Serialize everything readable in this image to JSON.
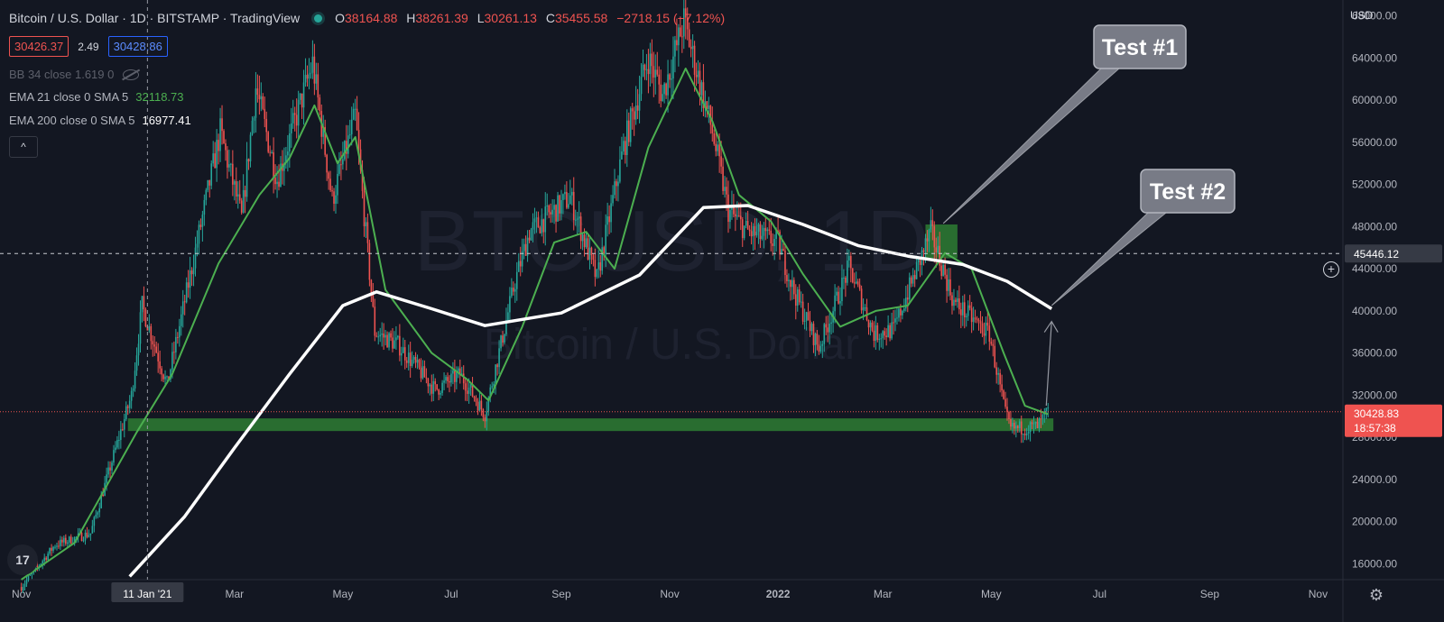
{
  "header": {
    "symbol_title": "Bitcoin / U.S. Dollar · 1D · BITSTAMP · TradingView",
    "ohlc": {
      "o_label": "O",
      "o": "38164.88",
      "h_label": "H",
      "h": "38261.39",
      "l_label": "L",
      "l": "30261.13",
      "c_label": "C",
      "c": "35455.58",
      "change": "−2718.15 (−7.12%)"
    },
    "sell_price": "30426.37",
    "spread": "2.49",
    "buy_price": "30428.86"
  },
  "indicators": {
    "bb": "BB 34 close 1.619 0",
    "ema21_label": "EMA 21 close 0 SMA 5",
    "ema21_value": "32118.73",
    "ema200_label": "EMA 200 close 0 SMA 5",
    "ema200_value": "16977.41"
  },
  "axis": {
    "currency": "USD",
    "crosshair_price": "45446.12",
    "last_price": "30428.83",
    "countdown": "18:57:38",
    "crosshair_date": "11 Jan '21"
  },
  "watermark": {
    "symbol": "BTCUSD, 1D",
    "name": "Bitcoin / U.S. Dollar"
  },
  "logo_text": "17",
  "icons": {
    "collapse": "chevron-up-icon",
    "hide": "eye-off-icon",
    "settings": "gear-icon",
    "add": "plus-circle-icon"
  },
  "colors": {
    "background": "#131722",
    "up": "#26a69a",
    "down": "#ef5350",
    "ema21": "#4caf50",
    "ema200": "#ffffff",
    "support_zone": "#2e7d32",
    "callout": "#787b86"
  },
  "chart_data": {
    "type": "candlestick",
    "title": "Bitcoin / U.S. Dollar",
    "interval": "1D",
    "exchange": "BITSTAMP",
    "y_range": [
      14500,
      69500
    ],
    "x_range": [
      "2020-10-20",
      "2022-11-15"
    ],
    "ylabel": "USD",
    "y_ticks": [
      16000,
      20000,
      24000,
      28000,
      32000,
      36000,
      40000,
      44000,
      48000,
      52000,
      56000,
      60000,
      64000,
      68000
    ],
    "y_tick_labels": [
      "16000.00",
      "20000.00",
      "24000.00",
      "28000.00",
      "32000.00",
      "36000.00",
      "40000.00",
      "44000.00",
      "48000.00",
      "52000.00",
      "56000.00",
      "60000.00",
      "64000.00",
      "68000.00"
    ],
    "x_ticks": [
      {
        "date": "2020-11-01",
        "label": "Nov"
      },
      {
        "date": "2021-01-11",
        "label": "11 Jan '21"
      },
      {
        "date": "2021-03-01",
        "label": "Mar"
      },
      {
        "date": "2021-05-01",
        "label": "May"
      },
      {
        "date": "2021-07-01",
        "label": "Jul"
      },
      {
        "date": "2021-09-01",
        "label": "Sep"
      },
      {
        "date": "2021-11-01",
        "label": "Nov"
      },
      {
        "date": "2022-01-01",
        "label": "2022"
      },
      {
        "date": "2022-03-01",
        "label": "Mar"
      },
      {
        "date": "2022-05-01",
        "label": "May"
      },
      {
        "date": "2022-07-01",
        "label": "Jul"
      },
      {
        "date": "2022-09-01",
        "label": "Sep"
      },
      {
        "date": "2022-11-01",
        "label": "Nov"
      }
    ],
    "series": [
      {
        "name": "BTCUSD",
        "x": [
          "2020-11-01",
          "2020-11-20",
          "2020-12-10",
          "2021-01-02",
          "2021-01-08",
          "2021-01-22",
          "2021-02-08",
          "2021-02-21",
          "2021-03-05",
          "2021-03-13",
          "2021-03-25",
          "2021-04-14",
          "2021-04-25",
          "2021-05-08",
          "2021-05-19",
          "2021-06-01",
          "2021-06-22",
          "2021-07-06",
          "2021-07-20",
          "2021-08-06",
          "2021-08-14",
          "2021-09-06",
          "2021-09-21",
          "2021-10-06",
          "2021-10-20",
          "2021-10-28",
          "2021-11-09",
          "2021-11-25",
          "2021-12-04",
          "2021-12-15",
          "2022-01-01",
          "2022-01-10",
          "2022-01-24",
          "2022-02-10",
          "2022-02-24",
          "2022-03-07",
          "2022-03-28",
          "2022-04-10",
          "2022-04-30",
          "2022-05-09",
          "2022-05-12",
          "2022-05-27",
          "2022-06-02"
        ],
        "close": [
          13800,
          17800,
          18900,
          32000,
          40500,
          33000,
          46500,
          57000,
          48800,
          61200,
          52500,
          63500,
          50500,
          58500,
          38000,
          36800,
          32500,
          34000,
          30200,
          42800,
          47500,
          50800,
          43000,
          55500,
          64000,
          60500,
          67500,
          57000,
          49500,
          47500,
          46500,
          41800,
          36500,
          44200,
          37800,
          38200,
          47500,
          40800,
          37800,
          30200,
          28800,
          29000,
          30428
        ]
      },
      {
        "name": "EMA 21",
        "x": [
          "2020-11-01",
          "2020-12-01",
          "2021-01-05",
          "2021-01-25",
          "2021-02-20",
          "2021-03-15",
          "2021-04-01",
          "2021-04-15",
          "2021-04-28",
          "2021-05-08",
          "2021-05-25",
          "2021-06-20",
          "2021-07-10",
          "2021-07-22",
          "2021-08-10",
          "2021-08-28",
          "2021-09-15",
          "2021-10-01",
          "2021-10-20",
          "2021-11-10",
          "2021-11-25",
          "2021-12-10",
          "2021-12-28",
          "2022-01-15",
          "2022-02-05",
          "2022-02-25",
          "2022-03-15",
          "2022-04-05",
          "2022-04-20",
          "2022-05-08",
          "2022-05-20",
          "2022-06-02"
        ],
        "values": [
          14500,
          18000,
          28500,
          34000,
          44500,
          51000,
          54500,
          59500,
          54000,
          56500,
          42000,
          36000,
          33500,
          31500,
          38500,
          46500,
          47500,
          44000,
          55500,
          63000,
          58000,
          51000,
          48500,
          43500,
          38500,
          40000,
          40500,
          45500,
          44000,
          36000,
          31000,
          30200
        ]
      },
      {
        "name": "EMA 200",
        "x": [
          "2021-01-01",
          "2021-02-01",
          "2021-03-01",
          "2021-04-01",
          "2021-05-01",
          "2021-05-20",
          "2021-06-20",
          "2021-07-20",
          "2021-09-01",
          "2021-10-15",
          "2021-11-20",
          "2021-12-15",
          "2022-01-15",
          "2022-02-15",
          "2022-03-15",
          "2022-04-15",
          "2022-05-10",
          "2022-06-04"
        ],
        "values": [
          14800,
          20500,
          27000,
          34000,
          40500,
          41800,
          40200,
          38600,
          39800,
          43400,
          49800,
          50000,
          48200,
          46200,
          45200,
          44400,
          42800,
          40200
        ]
      }
    ],
    "annotations": [
      {
        "type": "zone",
        "label": "",
        "y_range": [
          28600,
          29800
        ],
        "x_range": [
          "2020-12-31",
          "2022-06-05"
        ]
      },
      {
        "type": "zone",
        "label": "",
        "y_range": [
          45000,
          48200
        ],
        "x_range": [
          "2022-03-25",
          "2022-04-12"
        ]
      },
      {
        "type": "callout",
        "label": "Test #1",
        "target": [
          "2022-04-04",
          48300
        ]
      },
      {
        "type": "callout",
        "label": "Test #2",
        "target": [
          "2022-06-04",
          40500
        ]
      },
      {
        "type": "arrow",
        "label": "",
        "from": [
          "2022-06-01",
          31000
        ],
        "to": [
          "2022-06-04",
          39000
        ]
      }
    ],
    "crosshair": {
      "date": "2021-01-11",
      "price": 45446.12
    },
    "last_price_line": 30428.83
  }
}
